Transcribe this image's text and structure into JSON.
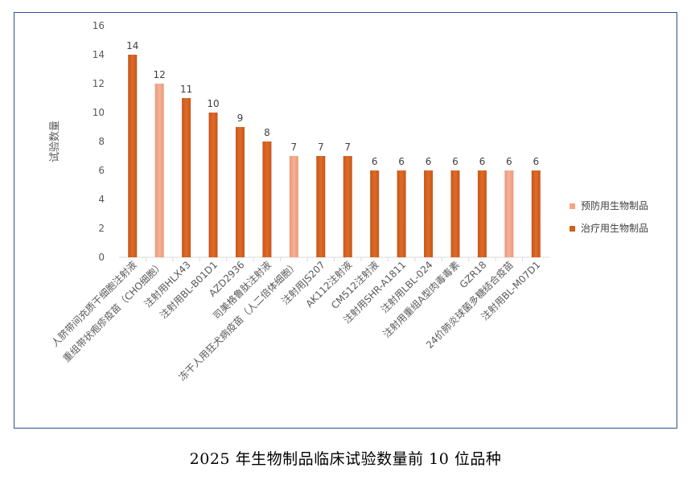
{
  "chart_data": {
    "type": "bar",
    "ylabel": "试验数量",
    "ylim": [
      0,
      16
    ],
    "yticks": [
      0,
      2,
      4,
      6,
      8,
      10,
      12,
      14,
      16
    ],
    "grid": false,
    "legend_position": "right",
    "categories": [
      "人脐带间充质干细胞注射液",
      "重组带状疱疹疫苗（CHO细胞）",
      "注射用HLX43",
      "注射用BL-B01D1",
      "AZD2936",
      "司美格鲁肽注射液",
      "冻干人用狂犬病疫苗（人二倍体细胞）",
      "注射用JS207",
      "AK112注射液",
      "CM512注射液",
      "注射用SHR-A1811",
      "注射用LBL-024",
      "注射用重组A型肉毒毒素",
      "GZR18",
      "24价肺炎球菌多糖结合疫苗",
      "注射用BL-M07D1"
    ],
    "series": [
      {
        "name": "预防用生物制品",
        "color": "#f4a582",
        "values": [
          null,
          12,
          null,
          null,
          null,
          null,
          7,
          null,
          null,
          null,
          null,
          null,
          null,
          null,
          6,
          null
        ]
      },
      {
        "name": "治疗用生物制品",
        "color": "#d2601a",
        "values": [
          14,
          null,
          11,
          10,
          9,
          8,
          null,
          7,
          7,
          6,
          6,
          6,
          6,
          6,
          null,
          6
        ]
      }
    ]
  },
  "caption": "2025 年生物制品临床试验数量前 10 位品种"
}
